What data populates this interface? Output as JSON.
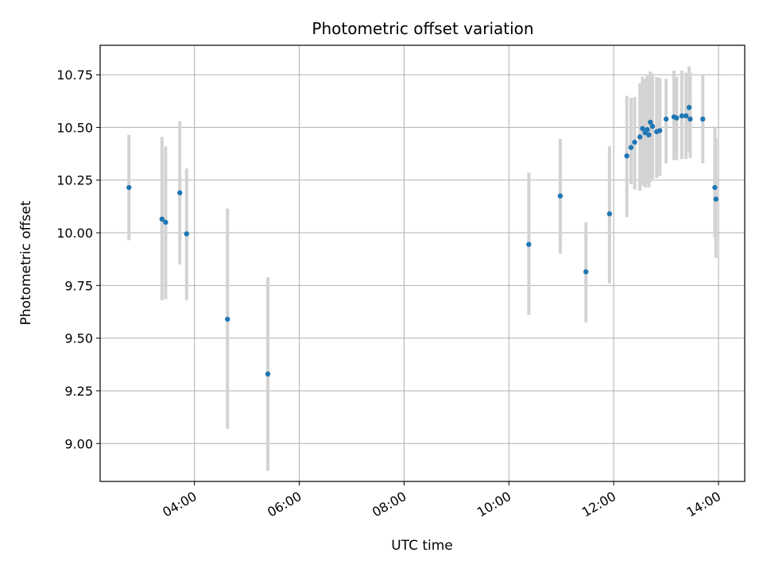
{
  "chart_data": {
    "type": "scatter",
    "title": "Photometric offset variation",
    "xlabel": "UTC time",
    "ylabel": "Photometric offset",
    "x_unit": "hours (UTC)",
    "xlim": [
      2.2,
      14.5
    ],
    "ylim": [
      8.82,
      10.89
    ],
    "xticks": [
      {
        "value": 4,
        "label": "04:00"
      },
      {
        "value": 6,
        "label": "06:00"
      },
      {
        "value": 8,
        "label": "08:00"
      },
      {
        "value": 10,
        "label": "10:00"
      },
      {
        "value": 12,
        "label": "12:00"
      },
      {
        "value": 14,
        "label": "14:00"
      }
    ],
    "yticks": [
      {
        "value": 9.0,
        "label": "9.00"
      },
      {
        "value": 9.25,
        "label": "9.25"
      },
      {
        "value": 9.5,
        "label": "9.50"
      },
      {
        "value": 9.75,
        "label": "9.75"
      },
      {
        "value": 10.0,
        "label": "10.00"
      },
      {
        "value": 10.25,
        "label": "10.25"
      },
      {
        "value": 10.5,
        "label": "10.50"
      },
      {
        "value": 10.75,
        "label": "10.75"
      }
    ],
    "grid": true,
    "colors": {
      "point": "#1f77b4",
      "errorbar": "#d3d3d3",
      "grid": "#b0b0b0"
    },
    "points": [
      {
        "x": 2.75,
        "y": 10.215,
        "ylow": 9.965,
        "yhigh": 10.465
      },
      {
        "x": 3.38,
        "y": 10.065,
        "ylow": 9.68,
        "yhigh": 10.455
      },
      {
        "x": 3.45,
        "y": 10.05,
        "ylow": 9.685,
        "yhigh": 10.41
      },
      {
        "x": 3.72,
        "y": 10.19,
        "ylow": 9.85,
        "yhigh": 10.53
      },
      {
        "x": 3.85,
        "y": 9.995,
        "ylow": 9.68,
        "yhigh": 10.305
      },
      {
        "x": 4.63,
        "y": 9.59,
        "ylow": 9.07,
        "yhigh": 10.115
      },
      {
        "x": 5.4,
        "y": 9.33,
        "ylow": 8.87,
        "yhigh": 9.79
      },
      {
        "x": 10.38,
        "y": 9.945,
        "ylow": 9.61,
        "yhigh": 10.285
      },
      {
        "x": 10.98,
        "y": 10.175,
        "ylow": 9.9,
        "yhigh": 10.445
      },
      {
        "x": 11.47,
        "y": 9.815,
        "ylow": 9.575,
        "yhigh": 10.05
      },
      {
        "x": 11.92,
        "y": 10.09,
        "ylow": 9.76,
        "yhigh": 10.41
      },
      {
        "x": 12.25,
        "y": 10.365,
        "ylow": 10.075,
        "yhigh": 10.65
      },
      {
        "x": 12.33,
        "y": 10.405,
        "ylow": 10.23,
        "yhigh": 10.64
      },
      {
        "x": 12.4,
        "y": 10.43,
        "ylow": 10.205,
        "yhigh": 10.645
      },
      {
        "x": 12.5,
        "y": 10.455,
        "ylow": 10.2,
        "yhigh": 10.71
      },
      {
        "x": 12.55,
        "y": 10.495,
        "ylow": 10.225,
        "yhigh": 10.74
      },
      {
        "x": 12.6,
        "y": 10.475,
        "ylow": 10.215,
        "yhigh": 10.73
      },
      {
        "x": 12.64,
        "y": 10.49,
        "ylow": 10.235,
        "yhigh": 10.745
      },
      {
        "x": 12.67,
        "y": 10.465,
        "ylow": 10.215,
        "yhigh": 10.72
      },
      {
        "x": 12.7,
        "y": 10.525,
        "ylow": 10.24,
        "yhigh": 10.765
      },
      {
        "x": 12.74,
        "y": 10.505,
        "ylow": 10.255,
        "yhigh": 10.755
      },
      {
        "x": 12.82,
        "y": 10.48,
        "ylow": 10.26,
        "yhigh": 10.74
      },
      {
        "x": 12.88,
        "y": 10.485,
        "ylow": 10.27,
        "yhigh": 10.735
      },
      {
        "x": 13.0,
        "y": 10.54,
        "ylow": 10.33,
        "yhigh": 10.73
      },
      {
        "x": 13.15,
        "y": 10.55,
        "ylow": 10.345,
        "yhigh": 10.77
      },
      {
        "x": 13.2,
        "y": 10.545,
        "ylow": 10.345,
        "yhigh": 10.74
      },
      {
        "x": 13.3,
        "y": 10.555,
        "ylow": 10.35,
        "yhigh": 10.77
      },
      {
        "x": 13.38,
        "y": 10.555,
        "ylow": 10.35,
        "yhigh": 10.76
      },
      {
        "x": 13.44,
        "y": 10.595,
        "ylow": 10.385,
        "yhigh": 10.79
      },
      {
        "x": 13.46,
        "y": 10.54,
        "ylow": 10.355,
        "yhigh": 10.76
      },
      {
        "x": 13.7,
        "y": 10.54,
        "ylow": 10.33,
        "yhigh": 10.75
      },
      {
        "x": 13.93,
        "y": 10.215,
        "ylow": 9.98,
        "yhigh": 10.505
      },
      {
        "x": 13.95,
        "y": 10.16,
        "ylow": 9.88,
        "yhigh": 10.45
      }
    ]
  }
}
